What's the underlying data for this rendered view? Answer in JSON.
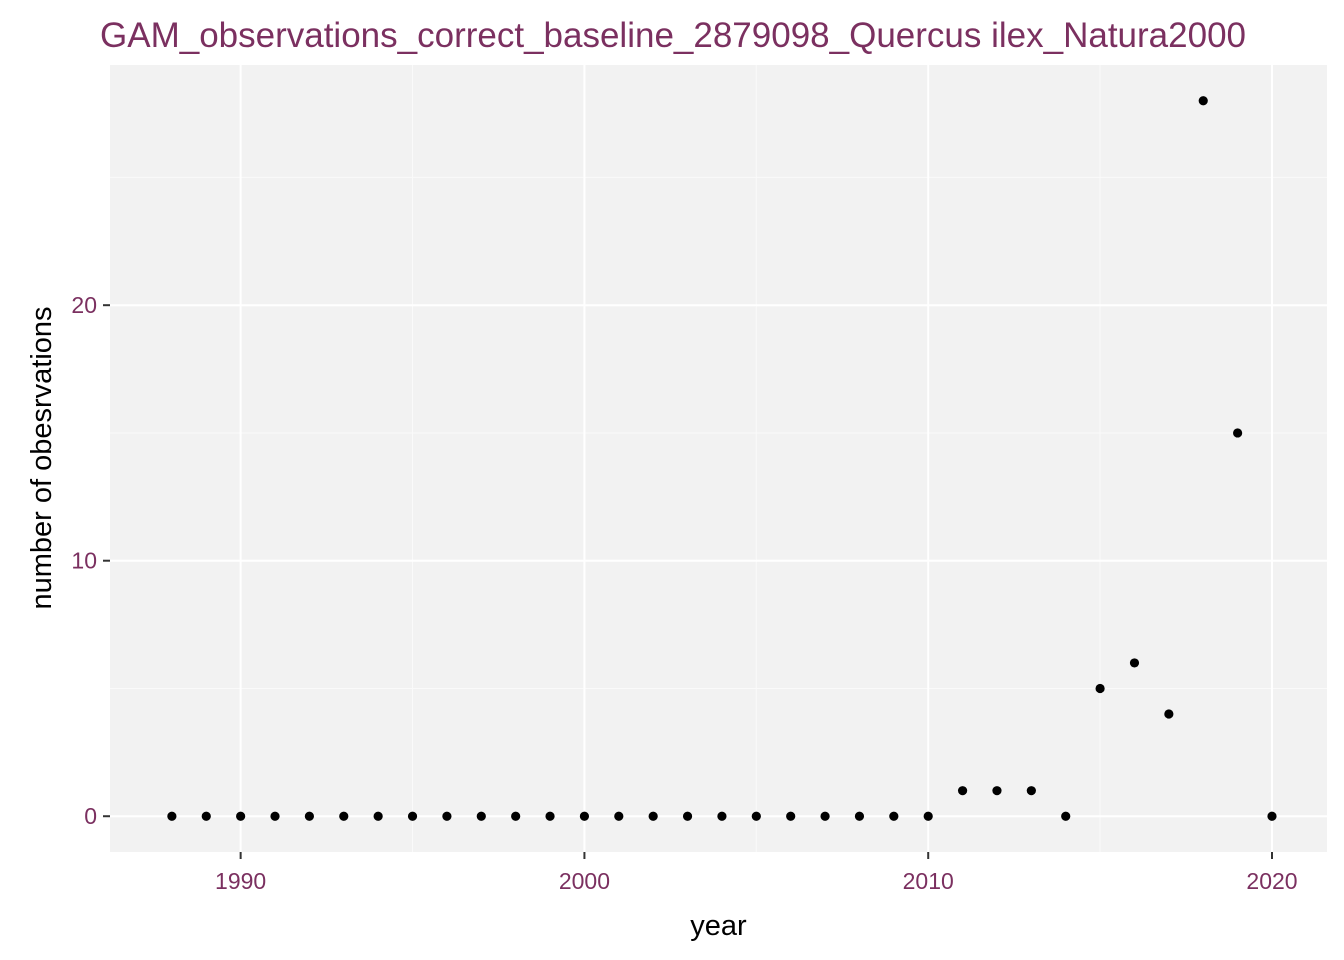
{
  "colors": {
    "title": "#7b3060",
    "tick_label": "#7b3060",
    "axis_title": "#000000",
    "panel": "#f2f2f2",
    "grid_major": "#ffffff",
    "grid_minor": "#fafafa",
    "point": "#000000",
    "tick_mark": "#333333"
  },
  "chart_data": {
    "type": "scatter",
    "title": "GAM_observations_correct_baseline_2879098_Quercus ilex_Natura2000",
    "xlabel": "year",
    "ylabel": "number of obesrvations",
    "xlim": [
      1986.2,
      2021.6
    ],
    "ylim": [
      -1.4,
      29.4
    ],
    "x_ticks": [
      1990,
      2000,
      2010,
      2020
    ],
    "x_tick_labels": [
      "1990",
      "2000",
      "2010",
      "2020"
    ],
    "x_minor": [
      1995,
      2005,
      2015
    ],
    "y_ticks": [
      0,
      10,
      20
    ],
    "y_tick_labels": [
      "0",
      "10",
      "20"
    ],
    "y_minor": [
      5,
      15,
      25
    ],
    "grid": true,
    "legend": "none",
    "points": [
      {
        "x": 1988,
        "y": 0
      },
      {
        "x": 1989,
        "y": 0
      },
      {
        "x": 1990,
        "y": 0
      },
      {
        "x": 1991,
        "y": 0
      },
      {
        "x": 1992,
        "y": 0
      },
      {
        "x": 1993,
        "y": 0
      },
      {
        "x": 1994,
        "y": 0
      },
      {
        "x": 1995,
        "y": 0
      },
      {
        "x": 1996,
        "y": 0
      },
      {
        "x": 1997,
        "y": 0
      },
      {
        "x": 1998,
        "y": 0
      },
      {
        "x": 1999,
        "y": 0
      },
      {
        "x": 2000,
        "y": 0
      },
      {
        "x": 2001,
        "y": 0
      },
      {
        "x": 2002,
        "y": 0
      },
      {
        "x": 2003,
        "y": 0
      },
      {
        "x": 2004,
        "y": 0
      },
      {
        "x": 2005,
        "y": 0
      },
      {
        "x": 2006,
        "y": 0
      },
      {
        "x": 2007,
        "y": 0
      },
      {
        "x": 2008,
        "y": 0
      },
      {
        "x": 2009,
        "y": 0
      },
      {
        "x": 2010,
        "y": 0
      },
      {
        "x": 2011,
        "y": 1
      },
      {
        "x": 2012,
        "y": 1
      },
      {
        "x": 2013,
        "y": 1
      },
      {
        "x": 2014,
        "y": 0
      },
      {
        "x": 2015,
        "y": 5
      },
      {
        "x": 2016,
        "y": 6
      },
      {
        "x": 2017,
        "y": 4
      },
      {
        "x": 2018,
        "y": 28
      },
      {
        "x": 2019,
        "y": 15
      },
      {
        "x": 2020,
        "y": 0
      }
    ]
  }
}
